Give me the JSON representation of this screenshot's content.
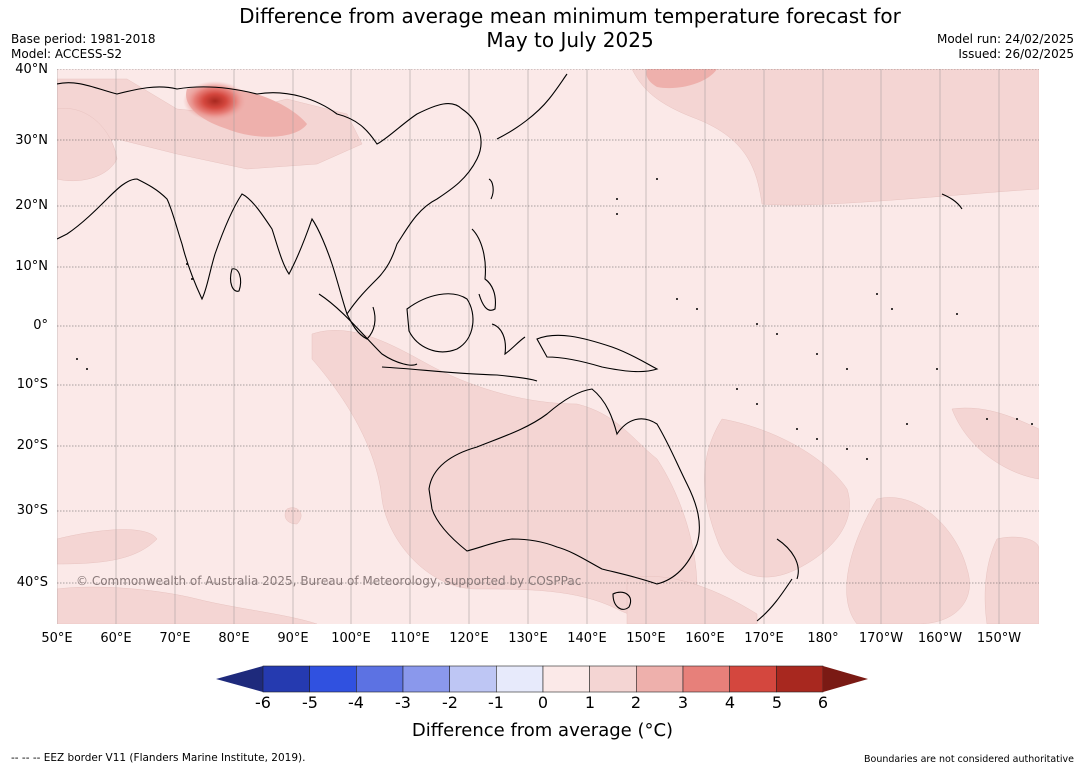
{
  "header": {
    "title_line1": "Difference from average mean minimum temperature forecast for",
    "title_line2": "May to July 2025",
    "base_period": "Base period: 1981-2018",
    "model": "Model: ACCESS-S2",
    "model_run": "Model run: 24/02/2025",
    "issued": "Issued: 26/02/2025"
  },
  "map": {
    "copyright": "© Commonwealth of Australia 2025, Bureau of Meteorology, supported by COSPPac",
    "lat_labels": [
      "40°N",
      "30°N",
      "20°N",
      "10°N",
      "0°",
      "10°S",
      "20°S",
      "30°S",
      "40°S"
    ],
    "lon_labels": [
      "50°E",
      "60°E",
      "70°E",
      "80°E",
      "90°E",
      "100°E",
      "110°E",
      "120°E",
      "130°E",
      "140°E",
      "150°E",
      "160°E",
      "170°E",
      "180°",
      "170°W",
      "160°W",
      "150°W"
    ],
    "background_color": "#fbe9e8",
    "anomaly_color_1_2": "#f4d5d3",
    "anomaly_color_2_3": "#eeb0ac",
    "anomaly_color_3_4": "#e7807a",
    "anomaly_color_hot": "#d4473e"
  },
  "colorbar": {
    "ticks": [
      "-6",
      "-5",
      "-4",
      "-3",
      "-2",
      "-1",
      "0",
      "1",
      "2",
      "3",
      "4",
      "5",
      "6"
    ],
    "colors": [
      "#1e2a7c",
      "#253ab0",
      "#3051e0",
      "#5c72e3",
      "#8a98ec",
      "#bec6f4",
      "#e7eafb",
      "#fbe9e8",
      "#f4d5d3",
      "#eeb0ac",
      "#e7807a",
      "#d4473e",
      "#a8281f",
      "#7a1a14"
    ],
    "label": "Difference from average (°C)"
  },
  "footer": {
    "eez_note": "--  --  -- EEZ border V11 (Flanders Marine Institute, 2019).",
    "boundaries_note": "Boundaries are not considered authoritative"
  }
}
